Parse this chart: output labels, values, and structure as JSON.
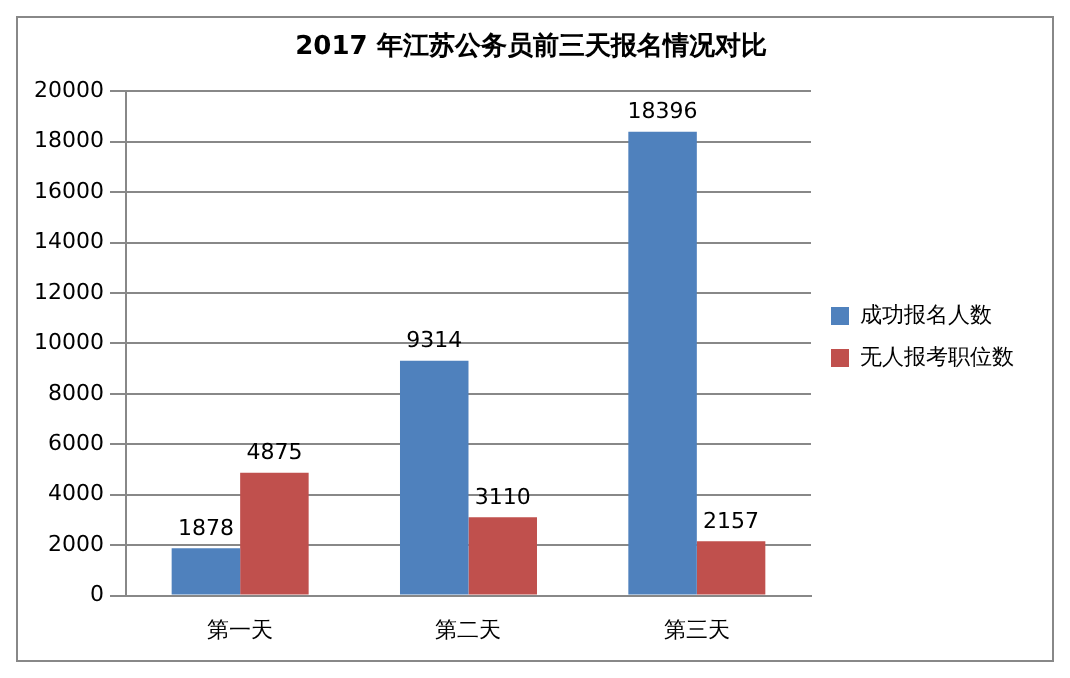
{
  "chart_data": {
    "type": "bar",
    "title": "2017 年江苏公务员前三天报名情况对比",
    "categories": [
      "第一天",
      "第二天",
      "第三天"
    ],
    "series": [
      {
        "name": "成功报名人数",
        "color": "#4f81bd",
        "values": [
          1878,
          9314,
          18396
        ]
      },
      {
        "name": "无人报考职位数",
        "color": "#c0504d",
        "values": [
          4875,
          3110,
          2157
        ]
      }
    ],
    "ylim": [
      0,
      20000
    ],
    "yticks": [
      0,
      2000,
      4000,
      6000,
      8000,
      10000,
      12000,
      14000,
      16000,
      18000,
      20000
    ],
    "grid": "y",
    "legend": "right",
    "data_labels": true
  }
}
